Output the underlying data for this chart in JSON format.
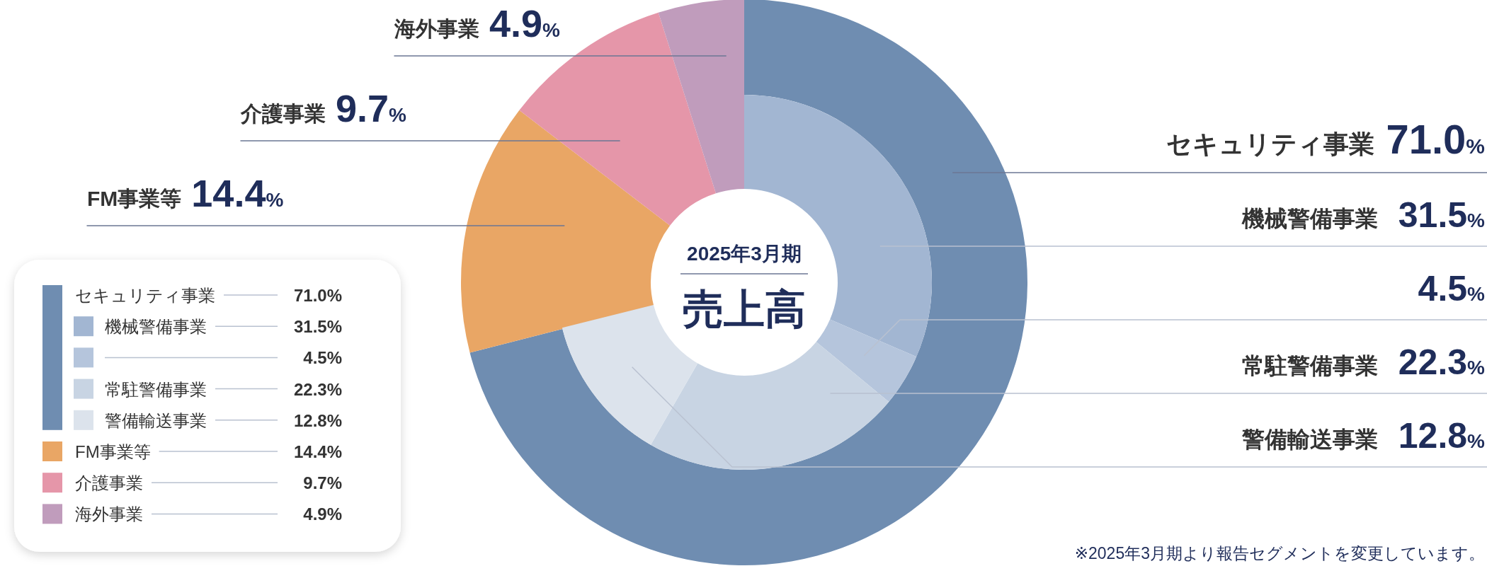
{
  "chart_data": [
    {
      "type": "donut",
      "title": "売上高",
      "subtitle": "2025年3月期",
      "categories": [
        "セキュリティ事業",
        "FM事業等",
        "介護事業",
        "海外事業"
      ],
      "values": [
        71.0,
        14.4,
        9.7,
        4.9
      ],
      "colors": [
        "#6f8db1",
        "#e9a665",
        "#e596a9",
        "#c09cbc"
      ],
      "value_labels": [
        "71.0%",
        "14.4%",
        "9.7%",
        "4.9%"
      ],
      "legend": "bottom left",
      "annotations": [
        "※2025年3月期より報告セグメントを変更しています。"
      ]
    },
    {
      "type": "donut",
      "categories": [
        "機械警備事業",
        null,
        "常駐警備事業",
        "警備輸送事業"
      ],
      "values": [
        31.5,
        4.5,
        22.3,
        12.8
      ],
      "colors": [
        "#a2b6d2",
        "#b5c5dc",
        "#c8d4e3",
        "#dce3ec"
      ],
      "value_labels": [
        "31.5%",
        "4.5%",
        "22.3%",
        "12.8%"
      ]
    }
  ]
}
